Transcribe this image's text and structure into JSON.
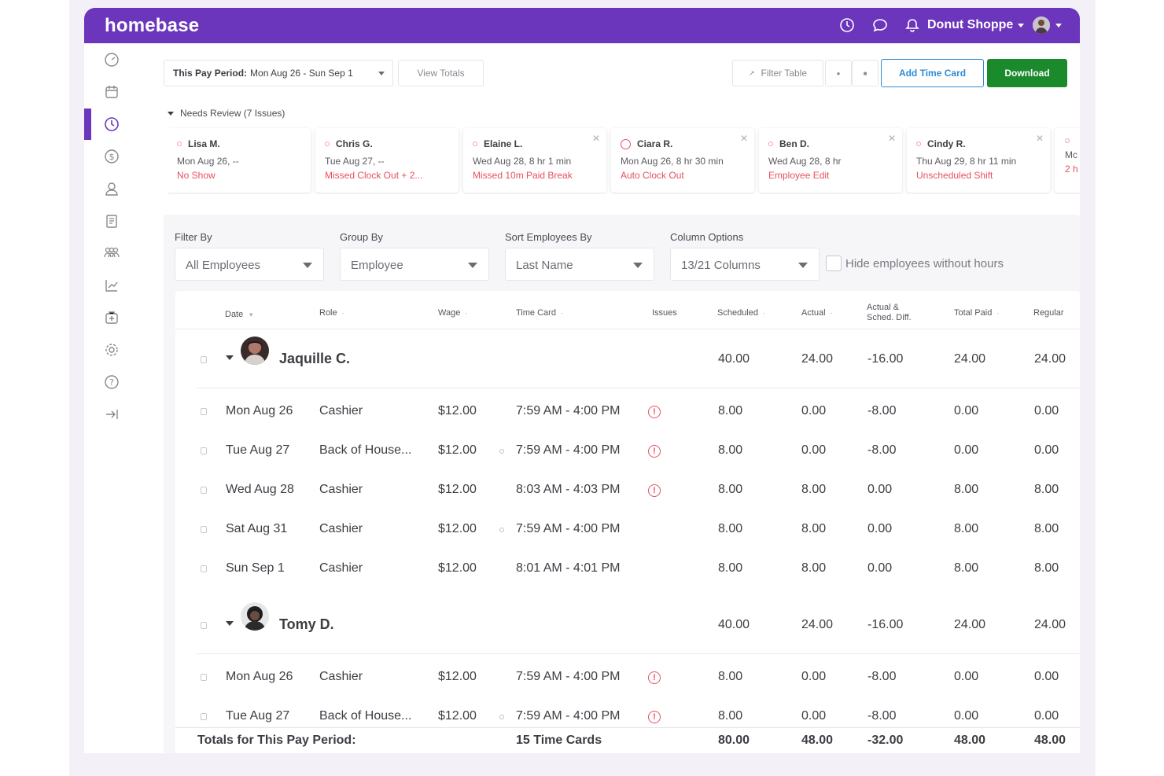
{
  "app": {
    "logo": "homebase",
    "store_name": "Donut Shoppe",
    "brand_color": "#6b36bb"
  },
  "topbar_icons": [
    "clock-icon",
    "chat-icon",
    "bell-icon"
  ],
  "sidebar": {
    "items": [
      "dashboard-icon",
      "calendar-icon",
      "timeclock-icon",
      "dollar-icon",
      "person-icon",
      "document-icon",
      "team-icon",
      "chart-icon",
      "plus-case-icon",
      "gear-icon",
      "help-icon",
      "collapse-icon"
    ],
    "active": "timeclock-icon"
  },
  "toolbar": {
    "pay_period_label": "This Pay Period:",
    "pay_period_value": "Mon Aug 26 - Sun Sep 1",
    "view_totals": "View Totals",
    "filter_table": "Filter Table",
    "add_time_card": "Add Time Card",
    "download": "Download"
  },
  "needs_review": {
    "label": "Needs Review (7 Issues)",
    "cards": [
      {
        "name": "Lisa M.",
        "detail": "Mon Aug 26, --",
        "issue": "No Show"
      },
      {
        "name": "Chris G.",
        "detail": "Tue Aug 27, --",
        "issue": "Missed Clock Out + 2..."
      },
      {
        "name": "Elaine L.",
        "detail": "Wed Aug 28, 8 hr 1 min",
        "issue": "Missed 10m Paid Break"
      },
      {
        "name": "Ciara R.",
        "detail": "Mon Aug 26, 8 hr 30 min",
        "issue": "Auto Clock Out"
      },
      {
        "name": "Ben D.",
        "detail": "Wed Aug 28, 8 hr",
        "issue": "Employee Edit"
      },
      {
        "name": "Cindy R.",
        "detail": "Thu Aug 29, 8 hr 11 min",
        "issue": "Unscheduled Shift"
      },
      {
        "name": "",
        "detail": "Mc",
        "issue": "2 h"
      }
    ]
  },
  "filters": {
    "filter_by": {
      "label": "Filter By",
      "value": "All Employees"
    },
    "group_by": {
      "label": "Group By",
      "value": "Employee"
    },
    "sort_by": {
      "label": "Sort Employees By",
      "value": "Last Name"
    },
    "columns": {
      "label": "Column Options",
      "value": "13/21 Columns"
    },
    "hide_label": "Hide employees without hours"
  },
  "table": {
    "headers": {
      "date": "Date",
      "role": "Role",
      "wage": "Wage",
      "time_card": "Time Card",
      "issues": "Issues",
      "scheduled": "Scheduled",
      "actual": "Actual",
      "diff_1": "Actual &",
      "diff_2": "Sched. Diff.",
      "total_paid": "Total Paid",
      "regular": "Regular"
    },
    "groups": [
      {
        "name": "Jaquille C.",
        "scheduled": "40.00",
        "actual": "24.00",
        "diff": "-16.00",
        "total_paid": "24.00",
        "regular": "24.00",
        "rows": [
          {
            "date": "Mon Aug 26",
            "role": "Cashier",
            "wage": "$12.00",
            "time": "7:59 AM - 4:00 PM",
            "issue": "!",
            "scheduled": "8.00",
            "actual": "0.00",
            "diff": "-8.00",
            "total_paid": "0.00",
            "regular": "0.00"
          },
          {
            "date": "Tue Aug 27",
            "role": "Back of House...",
            "wage": "$12.00",
            "time": "7:59 AM - 4:00 PM",
            "issue": "!",
            "scheduled": "8.00",
            "actual": "0.00",
            "diff": "-8.00",
            "total_paid": "0.00",
            "regular": "0.00"
          },
          {
            "date": "Wed Aug 28",
            "role": "Cashier",
            "wage": "$12.00",
            "time": "8:03 AM - 4:03 PM",
            "issue": "!",
            "scheduled": "8.00",
            "actual": "8.00",
            "diff": "0.00",
            "total_paid": "8.00",
            "regular": "8.00"
          },
          {
            "date": "Sat Aug 31",
            "role": "Cashier",
            "wage": "$12.00",
            "time": "7:59 AM - 4:00 PM",
            "issue": "",
            "scheduled": "8.00",
            "actual": "8.00",
            "diff": "0.00",
            "total_paid": "8.00",
            "regular": "8.00"
          },
          {
            "date": "Sun Sep 1",
            "role": "Cashier",
            "wage": "$12.00",
            "time": "8:01 AM - 4:01 PM",
            "issue": "",
            "scheduled": "8.00",
            "actual": "8.00",
            "diff": "0.00",
            "total_paid": "8.00",
            "regular": "8.00"
          }
        ]
      },
      {
        "name": "Tomy D.",
        "scheduled": "40.00",
        "actual": "24.00",
        "diff": "-16.00",
        "total_paid": "24.00",
        "regular": "24.00",
        "rows": [
          {
            "date": "Mon Aug 26",
            "role": "Cashier",
            "wage": "$12.00",
            "time": "7:59 AM - 4:00 PM",
            "issue": "!",
            "scheduled": "8.00",
            "actual": "0.00",
            "diff": "-8.00",
            "total_paid": "0.00",
            "regular": "0.00"
          },
          {
            "date": "Tue Aug 27",
            "role": "Back of House...",
            "wage": "$12.00",
            "time": "7:59 AM - 4:00 PM",
            "issue": "!",
            "scheduled": "8.00",
            "actual": "0.00",
            "diff": "-8.00",
            "total_paid": "0.00",
            "regular": "0.00"
          }
        ]
      }
    ],
    "totals": {
      "label": "Totals for This Pay Period:",
      "cards": "15 Time Cards",
      "scheduled": "80.00",
      "actual": "48.00",
      "diff": "-32.00",
      "total_paid": "48.00",
      "regular": "48.00"
    }
  }
}
